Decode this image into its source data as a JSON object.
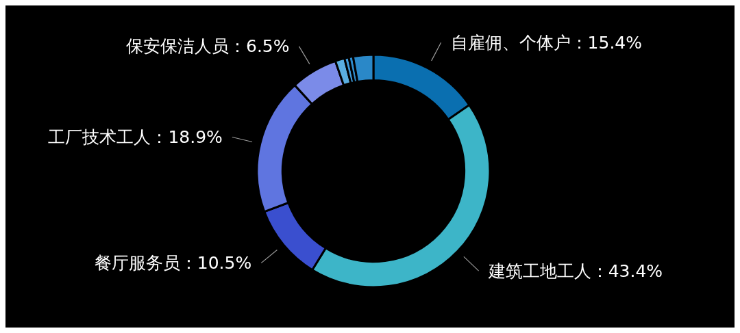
{
  "chart_data": {
    "type": "donut",
    "categories": [
      "自雇佣、个体户",
      "建筑工地工人",
      "餐厅服务员",
      "工厂技术工人",
      "保安保洁人员",
      null,
      null,
      null,
      null
    ],
    "values": [
      15.4,
      43.4,
      10.5,
      18.9,
      6.5,
      1.3,
      0.6,
      0.6,
      2.8
    ],
    "value_labels": [
      "15.4%",
      "43.4%",
      "10.5%",
      "18.9%",
      "6.5%",
      null,
      null,
      null,
      null
    ],
    "colors": [
      "#0a6fb0",
      "#3db5c8",
      "#3a4fcf",
      "#5f75e0",
      "#7b8be8",
      "#5aaee0",
      "#3f9ad8",
      "#2f8ccc",
      "#2a88c8"
    ],
    "legend": false
  }
}
